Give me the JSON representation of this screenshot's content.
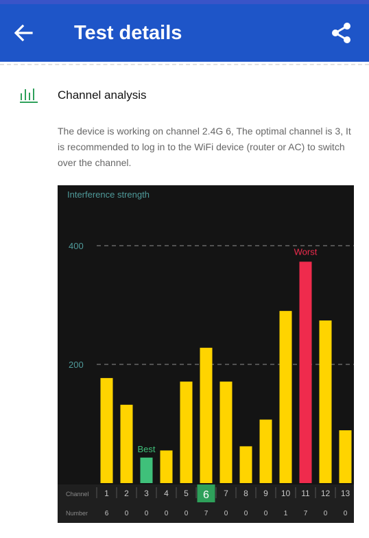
{
  "app_bar": {
    "title": "Test details",
    "back_icon": "arrow-left-icon",
    "share_icon": "share-icon"
  },
  "section": {
    "icon": "bar-chart-icon",
    "title": "Channel analysis",
    "description": "The device is working on channel 2.4G 6, The optimal channel is 3, It is recommended to log in to the WiFi device (router or AC) to switch over the channel."
  },
  "colors": {
    "app_bar": "#1e55c8",
    "bar_normal": "#ffd400",
    "bar_best": "#3fc07a",
    "bar_worst": "#ef2b4d",
    "accent_green": "#2ea05a"
  },
  "chart_data": {
    "type": "bar",
    "ylabel": "Interference strength",
    "yticks": [
      200,
      400
    ],
    "ylim": [
      0,
      405
    ],
    "grid": "dashed horizontal",
    "categories": [
      "1",
      "2",
      "3",
      "4",
      "5",
      "6",
      "7",
      "8",
      "9",
      "10",
      "11",
      "12",
      "13"
    ],
    "values": [
      177,
      132,
      43,
      55,
      171,
      228,
      171,
      62,
      107,
      290,
      373,
      274,
      89
    ],
    "best": {
      "channel": "3",
      "label": "Best"
    },
    "worst": {
      "channel": "11",
      "label": "Worst"
    },
    "current_channel": "6",
    "row_labels": {
      "channel": "Channel",
      "number": "Number"
    },
    "numbers": [
      "6",
      "0",
      "0",
      "0",
      "0",
      "7",
      "0",
      "0",
      "0",
      "1",
      "7",
      "0",
      "0"
    ]
  }
}
